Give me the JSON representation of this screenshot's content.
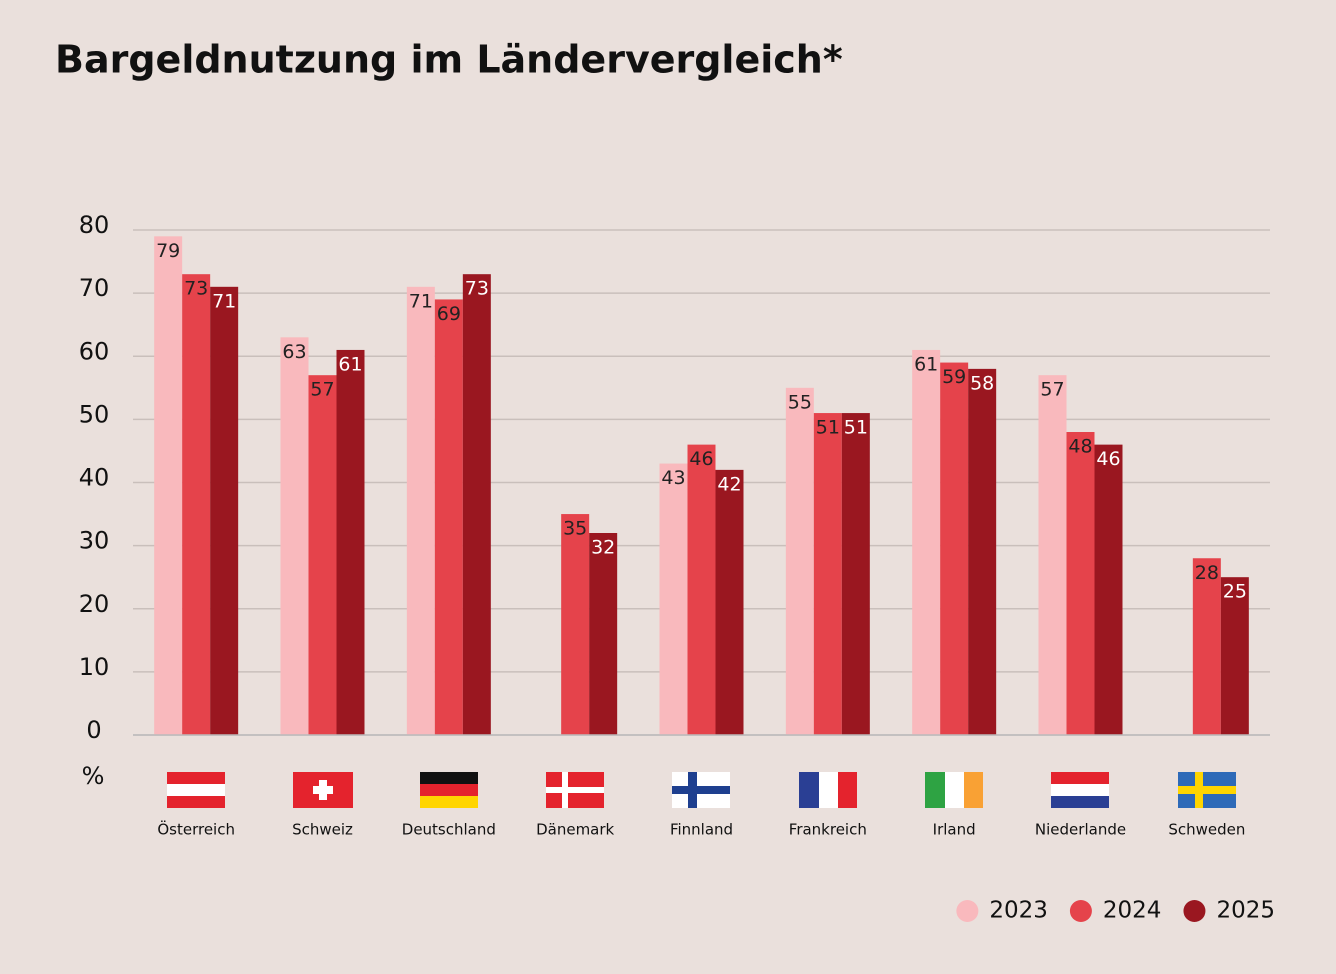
{
  "chart_data": {
    "type": "bar",
    "title": "Bargeldnutzung im Ländervergleich*",
    "y_unit": "%",
    "categories": [
      "Österreich",
      "Schweiz",
      "Deutschland",
      "Dänemark",
      "Finnland",
      "Frankreich",
      "Irland",
      "Niederlande",
      "Schweden"
    ],
    "series": [
      {
        "name": "2023",
        "color": "#f9b9bd",
        "values": [
          79,
          63,
          71,
          null,
          43,
          55,
          61,
          57,
          null
        ]
      },
      {
        "name": "2024",
        "color": "#e5434b",
        "values": [
          73,
          57,
          69,
          35,
          46,
          51,
          59,
          48,
          28
        ]
      },
      {
        "name": "2025",
        "color": "#9a1720",
        "values": [
          71,
          61,
          73,
          32,
          42,
          51,
          58,
          46,
          25
        ]
      }
    ],
    "ylim": [
      0,
      80
    ],
    "yticks": [
      0,
      10,
      20,
      30,
      40,
      50,
      60,
      70,
      80
    ],
    "grid": true,
    "legend": "bottom-right"
  }
}
